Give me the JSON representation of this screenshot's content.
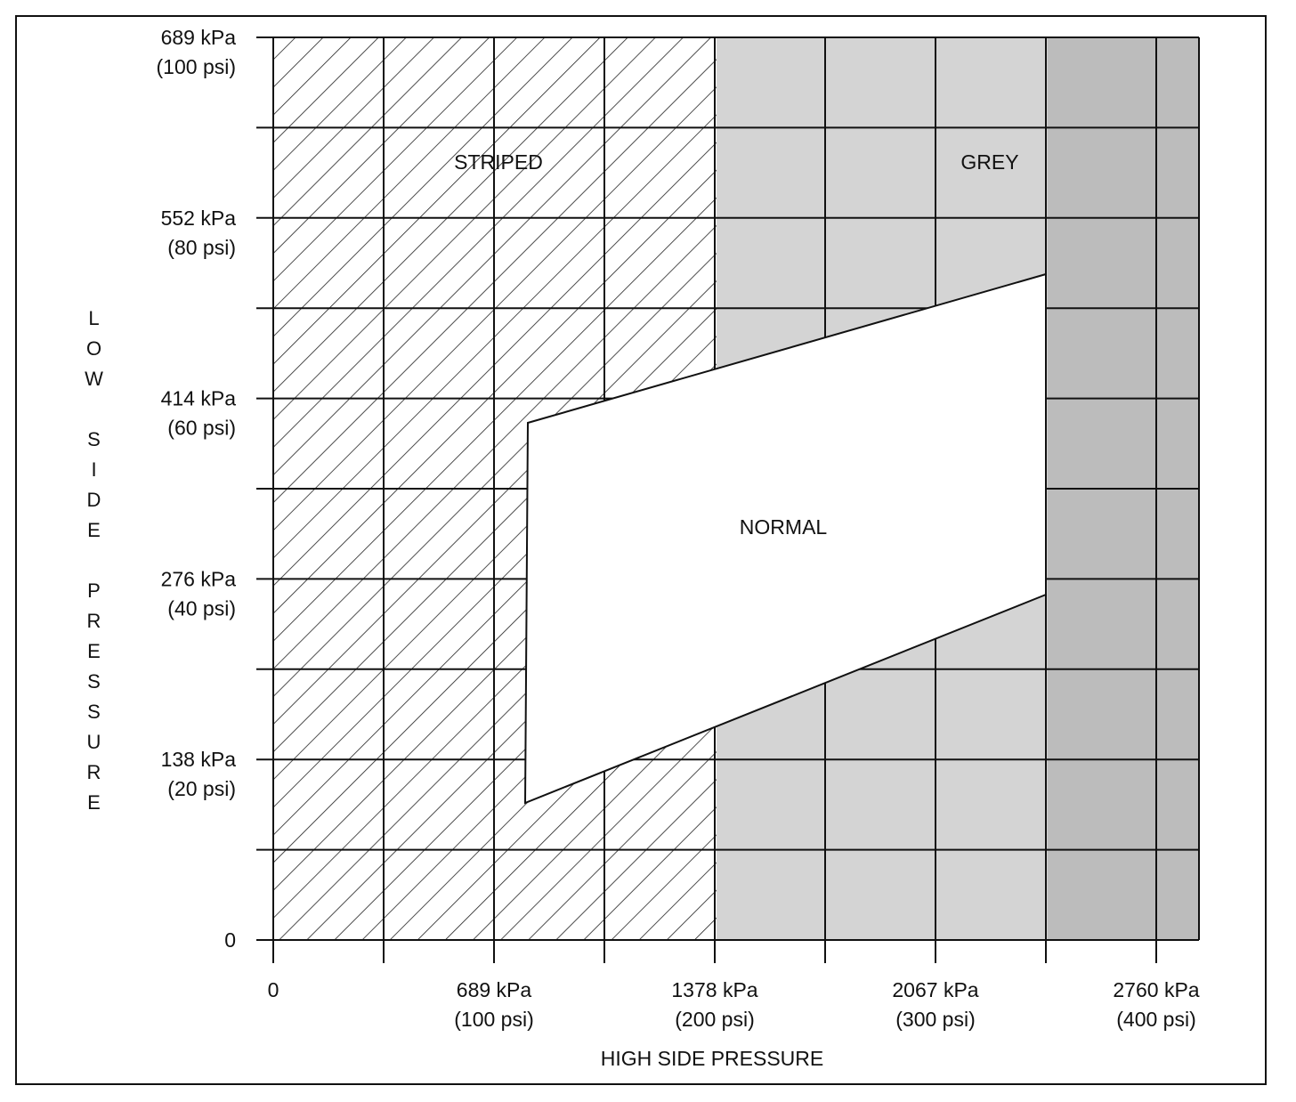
{
  "y_axis": {
    "label": "LOW SIDE PRESSURE",
    "ticks": [
      [
        "0"
      ],
      [
        "138 kPa",
        "(20 psi)"
      ],
      [
        "276 kPa",
        "(40 psi)"
      ],
      [
        "414 kPa",
        "(60 psi)"
      ],
      [
        "552 kPa",
        "(80 psi)"
      ],
      [
        "689 kPa",
        "(100 psi)"
      ]
    ]
  },
  "x_axis": {
    "label": "HIGH SIDE PRESSURE",
    "ticks": [
      [
        "0"
      ],
      [
        "689 kPa",
        "(100 psi)"
      ],
      [
        "1378 kPa",
        "(200 psi)"
      ],
      [
        "2067 kPa",
        "(300 psi)"
      ],
      [
        "2760 kPa",
        "(400 psi)"
      ]
    ]
  },
  "regions": {
    "striped": "STRIPED",
    "grey": "GREY",
    "normal": "NORMAL"
  }
}
